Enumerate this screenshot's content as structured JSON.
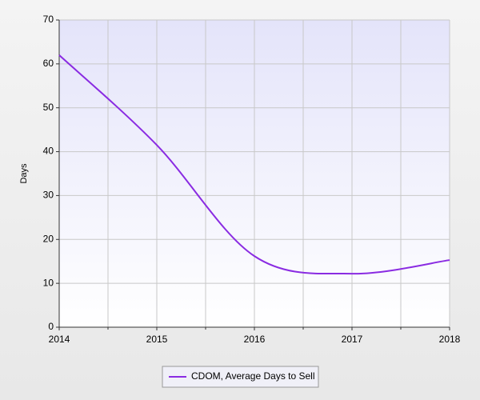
{
  "chart_data": {
    "type": "line",
    "ylabel": "Days",
    "x": [
      2014,
      2015,
      2016,
      2017,
      2018
    ],
    "series": [
      {
        "name": "CDOM, Average Days to Sell",
        "color": "#8a2be2",
        "values": [
          62,
          41.5,
          16.2,
          12.2,
          15.3
        ]
      }
    ],
    "xlim": [
      2014,
      2018
    ],
    "xticks": [
      2014,
      2015,
      2016,
      2017,
      2018
    ],
    "ylim": [
      0,
      70
    ],
    "yticks": [
      0,
      10,
      20,
      30,
      40,
      50,
      60,
      70
    ],
    "grid": true,
    "legend": "bottom",
    "smooth": true
  }
}
